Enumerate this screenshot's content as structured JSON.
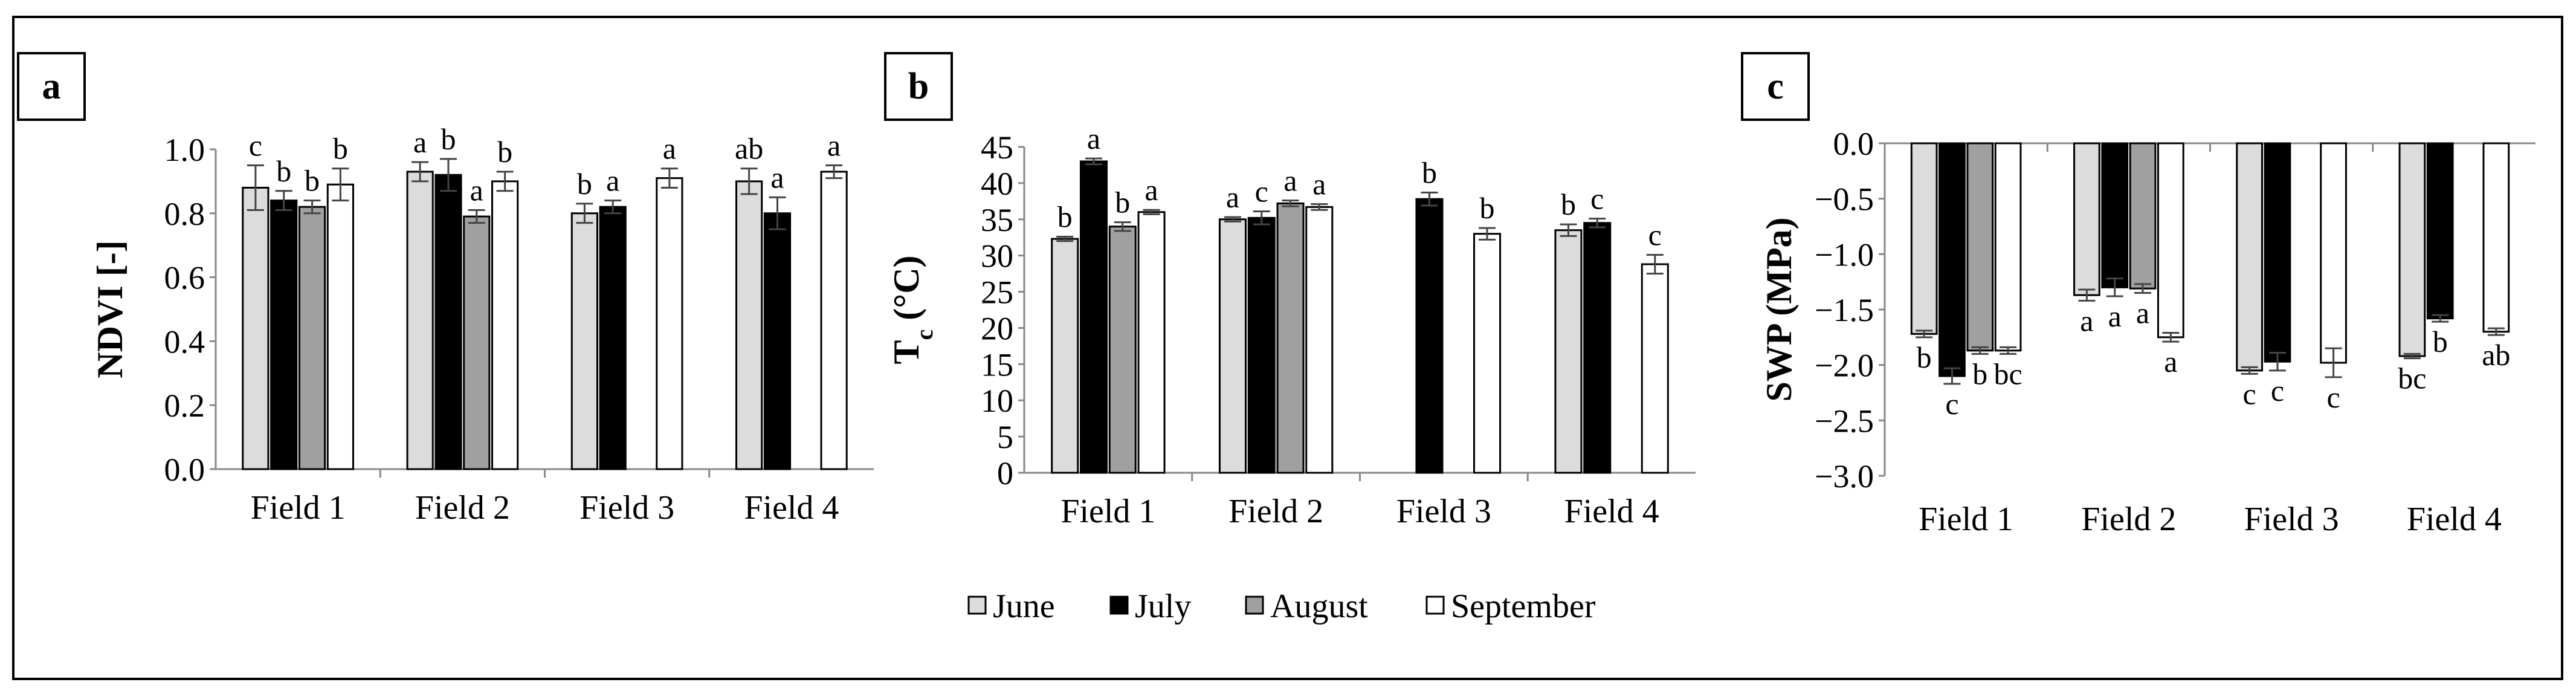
{
  "legend": {
    "position": "bottom-center",
    "items": [
      {
        "name": "June",
        "color": "#dcdcdc"
      },
      {
        "name": "July",
        "color": "#000000"
      },
      {
        "name": "August",
        "color": "#a0a0a0"
      },
      {
        "name": "September",
        "color": "#ffffff"
      }
    ]
  },
  "chart_data": [
    {
      "panel": "a",
      "type": "bar",
      "title": "",
      "xlabel": "",
      "ylabel": "NDVI [-]",
      "ylim": [
        0.0,
        1.0
      ],
      "yticks": [
        0.0,
        0.2,
        0.4,
        0.6,
        0.8,
        1.0
      ],
      "ytick_labels": [
        "0.0",
        "0.2",
        "0.4",
        "0.6",
        "0.8",
        "1.0"
      ],
      "grid": false,
      "categories": [
        "Field 1",
        "Field 2",
        "Field 3",
        "Field 4"
      ],
      "series": [
        {
          "name": "June",
          "values": [
            0.88,
            0.93,
            0.8,
            0.9
          ],
          "errors": [
            0.07,
            0.03,
            0.03,
            0.04
          ],
          "labels": [
            "c",
            "a",
            "b",
            "ab"
          ]
        },
        {
          "name": "July",
          "values": [
            0.84,
            0.92,
            0.82,
            0.8
          ],
          "errors": [
            0.03,
            0.05,
            0.02,
            0.05
          ],
          "labels": [
            "b",
            "b",
            "a",
            "a"
          ]
        },
        {
          "name": "August",
          "values": [
            0.82,
            0.79,
            null,
            null
          ],
          "errors": [
            0.02,
            0.02,
            null,
            null
          ],
          "labels": [
            "b",
            "a",
            "",
            ""
          ]
        },
        {
          "name": "September",
          "values": [
            0.89,
            0.9,
            0.91,
            0.93
          ],
          "errors": [
            0.05,
            0.03,
            0.03,
            0.02
          ],
          "labels": [
            "b",
            "b",
            "a",
            "a"
          ]
        }
      ]
    },
    {
      "panel": "b",
      "type": "bar",
      "title": "",
      "xlabel": "",
      "ylabel": "Tc (°C)",
      "ylabel_main": "T",
      "ylabel_sub": "c",
      "ylabel_rest": " (°C)",
      "ylim": [
        0,
        45
      ],
      "yticks": [
        0,
        5,
        10,
        15,
        20,
        25,
        30,
        35,
        40,
        45
      ],
      "ytick_labels": [
        "0",
        "5",
        "10",
        "15",
        "20",
        "25",
        "30",
        "35",
        "40",
        "45"
      ],
      "grid": false,
      "categories": [
        "Field 1",
        "Field 2",
        "Field 3",
        "Field 4"
      ],
      "series": [
        {
          "name": "June",
          "values": [
            32.3,
            35.0,
            null,
            33.5
          ],
          "errors": [
            0.3,
            0.3,
            null,
            0.8
          ],
          "labels": [
            "b",
            "a",
            "",
            "b"
          ]
        },
        {
          "name": "July",
          "values": [
            43.0,
            35.2,
            37.8,
            34.5
          ],
          "errors": [
            0.4,
            0.9,
            0.9,
            0.6
          ],
          "labels": [
            "a",
            "c",
            "b",
            "c"
          ]
        },
        {
          "name": "August",
          "values": [
            34.0,
            37.2,
            null,
            null
          ],
          "errors": [
            0.6,
            0.4,
            null,
            null
          ],
          "labels": [
            "b",
            "a",
            "",
            ""
          ]
        },
        {
          "name": "September",
          "values": [
            36.0,
            36.7,
            33.0,
            28.8
          ],
          "errors": [
            0.3,
            0.4,
            0.8,
            1.3
          ],
          "labels": [
            "a",
            "a",
            "b",
            "c"
          ]
        }
      ]
    },
    {
      "panel": "c",
      "type": "bar",
      "title": "",
      "xlabel": "",
      "ylabel": "SWP (MPa)",
      "ylim": [
        -3.0,
        0.0
      ],
      "yticks": [
        0.0,
        -0.5,
        -1.0,
        -1.5,
        -2.0,
        -2.5,
        -3.0
      ],
      "ytick_labels": [
        "0.0",
        "-0.5",
        "-1.0",
        "-1.5",
        "-2.0",
        "-2.5",
        "-3.0"
      ],
      "grid": false,
      "categories": [
        "Field 1",
        "Field 2",
        "Field 3",
        "Field 4"
      ],
      "series": [
        {
          "name": "June",
          "values": [
            -1.72,
            -1.37,
            -2.05,
            -1.92
          ],
          "errors": [
            0.03,
            0.05,
            0.03,
            0.02
          ],
          "labels": [
            "b",
            "a",
            "c",
            "bc"
          ]
        },
        {
          "name": "July",
          "values": [
            -2.1,
            -1.3,
            -1.97,
            -1.58
          ],
          "errors": [
            0.07,
            0.08,
            0.08,
            0.03
          ],
          "labels": [
            "c",
            "a",
            "c",
            "b"
          ]
        },
        {
          "name": "August",
          "values": [
            -1.87,
            -1.31,
            null,
            null
          ],
          "errors": [
            0.03,
            0.04,
            null,
            null
          ],
          "labels": [
            "b",
            "a",
            "",
            ""
          ]
        },
        {
          "name": "September",
          "values": [
            -1.87,
            -1.75,
            -1.98,
            -1.7
          ],
          "errors": [
            0.03,
            0.04,
            0.13,
            0.03
          ],
          "labels": [
            "bc",
            "a",
            "c",
            "ab"
          ]
        }
      ]
    }
  ]
}
